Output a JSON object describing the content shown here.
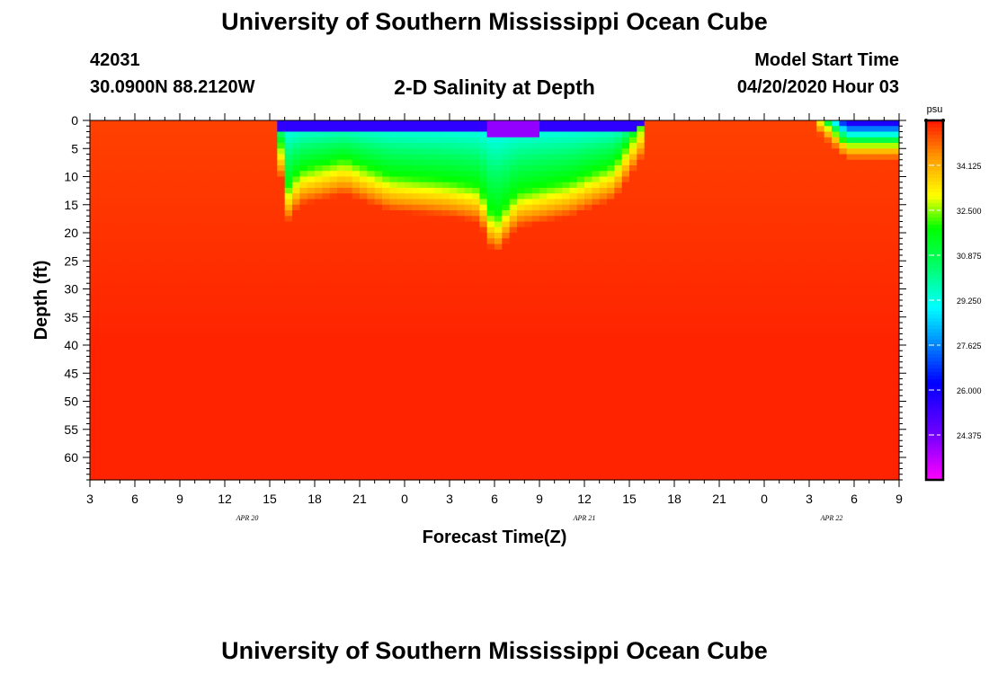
{
  "header": {
    "title_top": "University of Southern Mississippi Ocean Cube",
    "title_bottom": "University of Southern Mississippi Ocean Cube",
    "station_id": "42031",
    "station_coords": "30.0900N 88.2120W",
    "chart_title": "2-D Salinity at Depth",
    "model_label": "Model Start Time",
    "model_time": "04/20/2020 Hour 03"
  },
  "chart_data": {
    "type": "heatmap",
    "title": "2-D Salinity at Depth",
    "xlabel": "Forecast Time(Z)",
    "ylabel": "Depth (ft)",
    "x_hours_range": [
      0,
      54
    ],
    "x_ticks": [
      {
        "h": 0,
        "label": "3"
      },
      {
        "h": 3,
        "label": "6"
      },
      {
        "h": 6,
        "label": "9"
      },
      {
        "h": 9,
        "label": "12"
      },
      {
        "h": 12,
        "label": "15"
      },
      {
        "h": 15,
        "label": "18"
      },
      {
        "h": 18,
        "label": "21"
      },
      {
        "h": 21,
        "label": "0"
      },
      {
        "h": 24,
        "label": "3"
      },
      {
        "h": 27,
        "label": "6"
      },
      {
        "h": 30,
        "label": "9"
      },
      {
        "h": 33,
        "label": "12"
      },
      {
        "h": 36,
        "label": "15"
      },
      {
        "h": 39,
        "label": "18"
      },
      {
        "h": 42,
        "label": "21"
      },
      {
        "h": 45,
        "label": "0"
      },
      {
        "h": 48,
        "label": "3"
      },
      {
        "h": 51,
        "label": "6"
      },
      {
        "h": 54,
        "label": "9"
      }
    ],
    "date_labels": [
      {
        "h": 10.5,
        "label": "APR 20"
      },
      {
        "h": 33,
        "label": "APR 21"
      },
      {
        "h": 49.5,
        "label": "APR 22"
      }
    ],
    "ylim": [
      0,
      64
    ],
    "y_ticks": [
      0,
      5,
      10,
      15,
      20,
      25,
      30,
      35,
      40,
      45,
      50,
      55,
      60
    ],
    "colorbar": {
      "unit": "psu",
      "min": 22.75,
      "max": 35.75,
      "ticks": [
        "34.125",
        "32.500",
        "30.875",
        "29.250",
        "27.625",
        "26.000",
        "24.375"
      ]
    },
    "salinity_field": {
      "background_psu": 35.3,
      "deep_psu": 35.6,
      "fresh_core_psu": 24.0,
      "surface_layer_bottom_ft": [
        {
          "h": 12.5,
          "ft": 0
        },
        {
          "h": 13.2,
          "ft": 12
        },
        {
          "h": 14,
          "ft": 9
        },
        {
          "h": 17,
          "ft": 7
        },
        {
          "h": 20,
          "ft": 10
        },
        {
          "h": 24,
          "ft": 11
        },
        {
          "h": 26,
          "ft": 12
        },
        {
          "h": 27,
          "ft": 18
        },
        {
          "h": 28.5,
          "ft": 13
        },
        {
          "h": 32,
          "ft": 11
        },
        {
          "h": 35,
          "ft": 8
        },
        {
          "h": 37,
          "ft": 0
        }
      ],
      "late_lens": {
        "h_start": 48.5,
        "h_end": 54,
        "bottom_ft": 5
      }
    }
  }
}
